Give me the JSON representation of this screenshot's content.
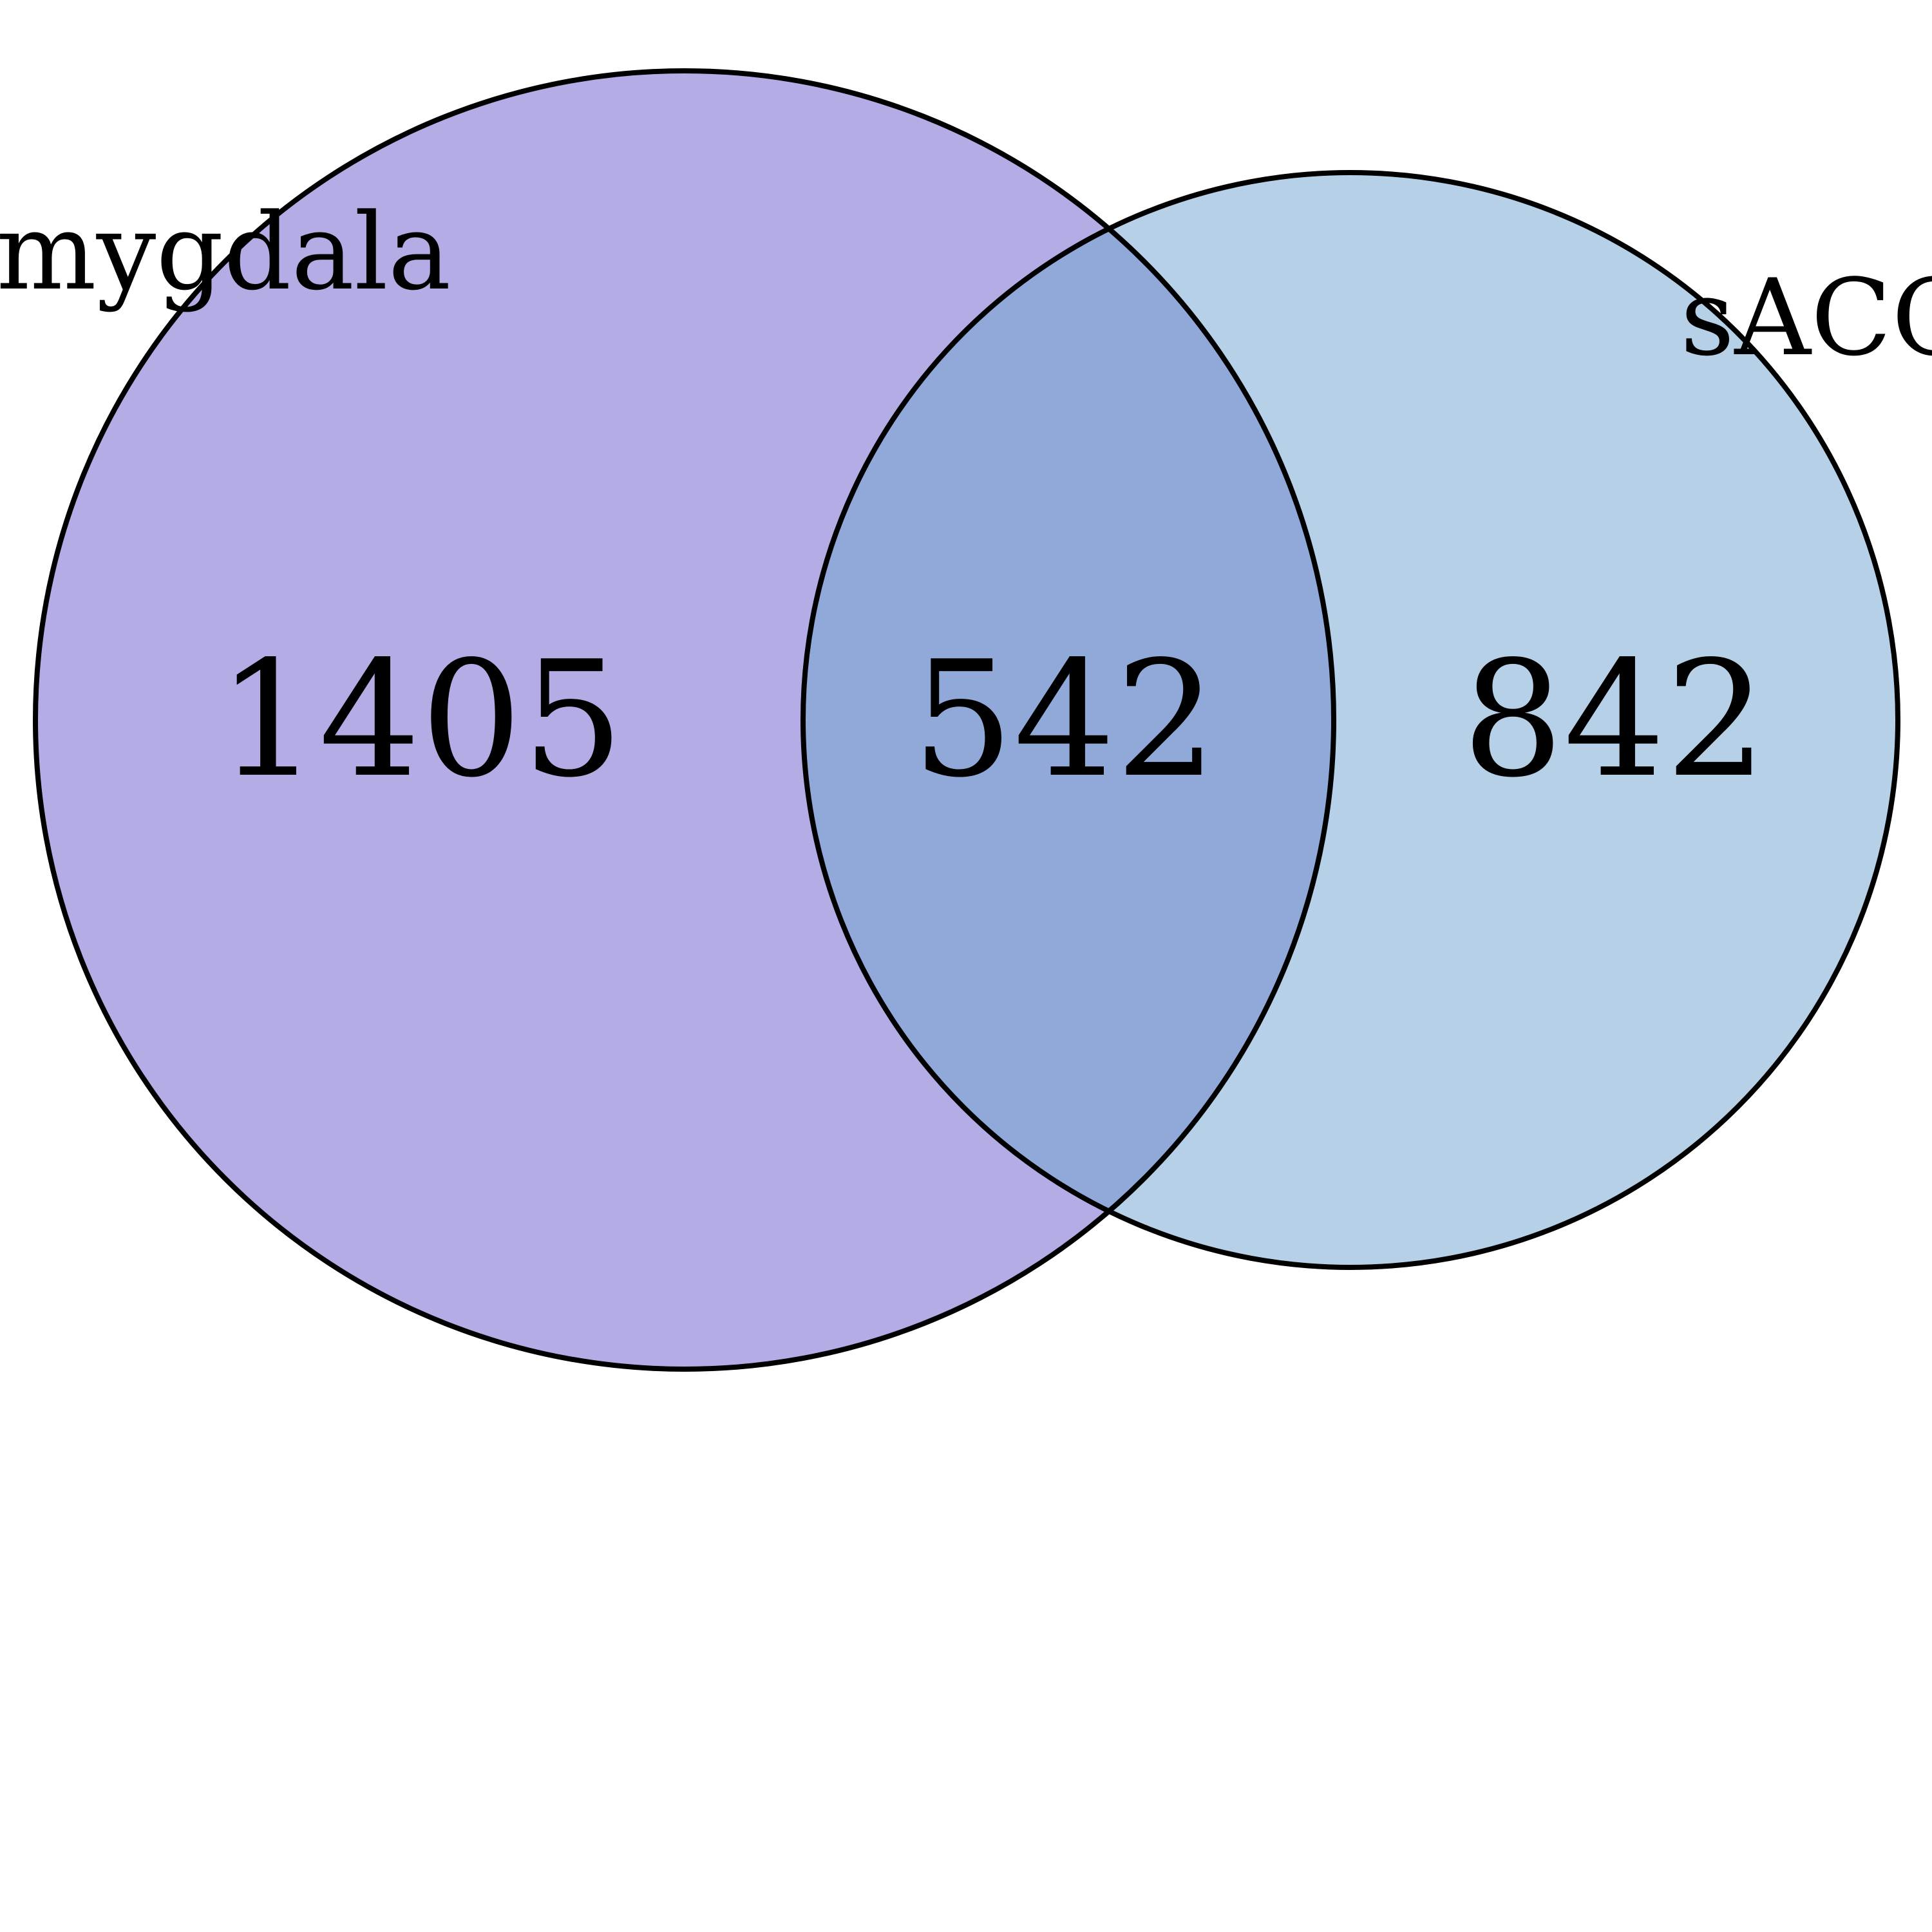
{
  "diagram": {
    "type": "venn2",
    "sets": [
      {
        "name": "Amygdala",
        "color": "#b3acE5"
      },
      {
        "name": "sACC",
        "color": "#b6d1e7"
      }
    ],
    "overlap_color": "#91a9d8",
    "outline_color": "#000000",
    "counts": {
      "only_amygdala": "1405",
      "both": "542",
      "only_sacc": "842"
    }
  }
}
